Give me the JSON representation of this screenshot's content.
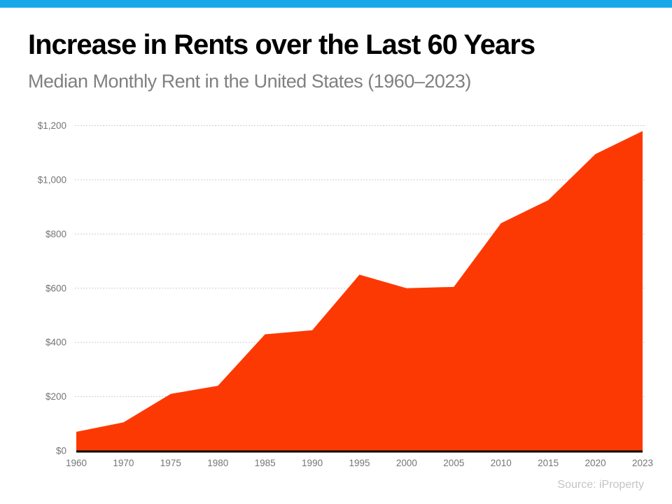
{
  "colors": {
    "accent_bar": "#18A8E9",
    "area_fill": "#FD3903",
    "gridline": "#CCCCCC",
    "axis_line": "#000000",
    "tick_label": "#757575",
    "title": "#000000",
    "subtitle": "#808080",
    "source": "#C4C4C4"
  },
  "header": {
    "title": "Increase in Rents over the Last 60 Years",
    "subtitle": "Median Monthly Rent in the United States (1960–2023)"
  },
  "footer": {
    "source": "Source: iProperty"
  },
  "chart_data": {
    "type": "area",
    "title": "Increase in Rents over the Last 60 Years",
    "subtitle": "Median Monthly Rent in the United States (1960–2023)",
    "series_name": "Median monthly rent (USD)",
    "categories": [
      "1960",
      "1970",
      "1975",
      "1980",
      "1985",
      "1990",
      "1995",
      "2000",
      "2005",
      "2010",
      "2015",
      "2020",
      "2023"
    ],
    "values": [
      70,
      105,
      210,
      240,
      430,
      445,
      650,
      600,
      605,
      840,
      925,
      1095,
      1180
    ],
    "xlabel": "",
    "ylabel": "",
    "ylim": [
      0,
      1200
    ],
    "ytick_interval": 200,
    "ytick_labels": [
      "$0",
      "$200",
      "$400",
      "$600",
      "$800",
      "$1,000",
      "$1,200"
    ],
    "grid": true,
    "grid_style": "dotted",
    "legend_position": "none",
    "fill_color": "#FD3903",
    "source": "Source: iProperty"
  }
}
